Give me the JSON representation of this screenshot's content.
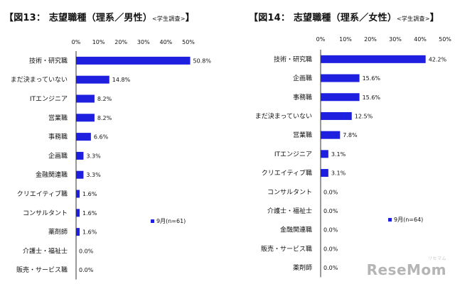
{
  "chart_data": [
    {
      "type": "bar",
      "orientation": "horizontal",
      "title": "【図13： 志望職種（理系／男性）",
      "subtitle": "<学生調査>",
      "title_close": "】",
      "categories": [
        "技術・研究職",
        "まだ決まっていない",
        "ITエンジニア",
        "営業職",
        "事務職",
        "企画職",
        "金融関連職",
        "クリエイティブ職",
        "コンサルタント",
        "薬剤師",
        "介護士・福祉士",
        "販売・サービス職"
      ],
      "values": [
        50.8,
        14.8,
        8.2,
        8.2,
        6.6,
        3.3,
        3.3,
        1.6,
        1.6,
        1.6,
        0.0,
        0.0
      ],
      "value_labels": [
        "50.8%",
        "14.8%",
        "8.2%",
        "8.2%",
        "6.6%",
        "3.3%",
        "3.3%",
        "1.6%",
        "1.6%",
        "1.6%",
        "0.0%",
        "0.0%"
      ],
      "xlim": [
        0,
        50
      ],
      "ticks": [
        0,
        10,
        20,
        30,
        40,
        50
      ],
      "tick_labels": [
        "0%",
        "10%",
        "20%",
        "30%",
        "40%",
        "50%"
      ],
      "legend": "9月(n=61)",
      "legend_position": "middle-right",
      "bar_color": "#1f1fe0"
    },
    {
      "type": "bar",
      "orientation": "horizontal",
      "title": "【図14： 志望職種（理系／女性）",
      "subtitle": "<学生調査>",
      "title_close": "】",
      "categories": [
        "技術・研究職",
        "企画職",
        "事務職",
        "まだ決まっていない",
        "営業職",
        "ITエンジニア",
        "クリエイティブ職",
        "コンサルタント",
        "介護士・福祉士",
        "金融関連職",
        "販売・サービス職",
        "薬剤師"
      ],
      "values": [
        42.2,
        15.6,
        15.6,
        12.5,
        7.8,
        3.1,
        3.1,
        0.0,
        0.0,
        0.0,
        0.0,
        0.0
      ],
      "value_labels": [
        "42.2%",
        "15.6%",
        "15.6%",
        "12.5%",
        "7.8%",
        "3.1%",
        "3.1%",
        "0.0%",
        "0.0%",
        "0.0%",
        "0.0%",
        "0.0%"
      ],
      "xlim": [
        0,
        50
      ],
      "ticks": [
        0,
        10,
        20,
        30,
        40,
        50
      ],
      "tick_labels": [
        "0%",
        "10%",
        "20%",
        "30%",
        "40%",
        "50%"
      ],
      "legend": "9月(n=64)",
      "legend_position": "middle-right",
      "bar_color": "#1f1fe0"
    }
  ],
  "watermark": {
    "text": "ReseMom",
    "kana": "リセマム"
  }
}
